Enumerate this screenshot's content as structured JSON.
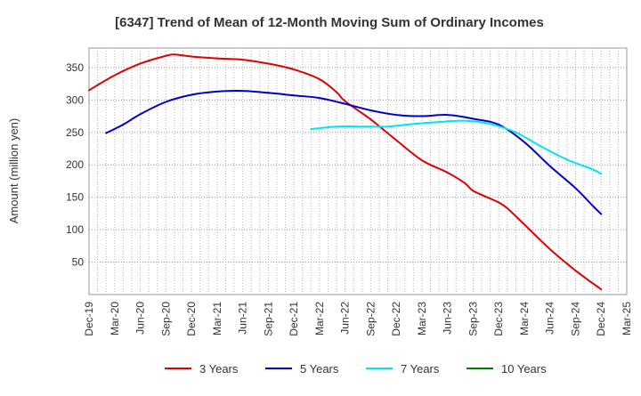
{
  "chart_data": {
    "type": "line",
    "title": "[6347]  Trend of Mean of 12-Month Moving Sum of Ordinary Incomes",
    "xlabel": "",
    "ylabel": "Amount (million yen)",
    "ylim": [
      0,
      380
    ],
    "yticks": [
      50,
      100,
      150,
      200,
      250,
      300,
      350
    ],
    "grid": true,
    "legend_position": "bottom",
    "x_index_range": [
      0,
      63
    ],
    "x_ticks": [
      {
        "i": 0,
        "label": "Dec-19"
      },
      {
        "i": 3,
        "label": "Mar-20"
      },
      {
        "i": 6,
        "label": "Jun-20"
      },
      {
        "i": 9,
        "label": "Sep-20"
      },
      {
        "i": 12,
        "label": "Dec-20"
      },
      {
        "i": 15,
        "label": "Mar-21"
      },
      {
        "i": 18,
        "label": "Jun-21"
      },
      {
        "i": 21,
        "label": "Sep-21"
      },
      {
        "i": 24,
        "label": "Dec-21"
      },
      {
        "i": 27,
        "label": "Mar-22"
      },
      {
        "i": 30,
        "label": "Jun-22"
      },
      {
        "i": 33,
        "label": "Sep-22"
      },
      {
        "i": 36,
        "label": "Dec-22"
      },
      {
        "i": 39,
        "label": "Mar-23"
      },
      {
        "i": 42,
        "label": "Jun-23"
      },
      {
        "i": 45,
        "label": "Sep-23"
      },
      {
        "i": 48,
        "label": "Dec-23"
      },
      {
        "i": 51,
        "label": "Mar-24"
      },
      {
        "i": 54,
        "label": "Jun-24"
      },
      {
        "i": 57,
        "label": "Sep-24"
      },
      {
        "i": 60,
        "label": "Dec-24"
      },
      {
        "i": 63,
        "label": "Mar-25"
      }
    ],
    "series": [
      {
        "name": "3 Years",
        "color": "#e00000",
        "points": [
          [
            0,
            315
          ],
          [
            3,
            338
          ],
          [
            6,
            356
          ],
          [
            9,
            368
          ],
          [
            10,
            370
          ],
          [
            12,
            367
          ],
          [
            15,
            364
          ],
          [
            18,
            362
          ],
          [
            21,
            356
          ],
          [
            24,
            347
          ],
          [
            27,
            332
          ],
          [
            29,
            312
          ],
          [
            30,
            298
          ],
          [
            33,
            270
          ],
          [
            36,
            238
          ],
          [
            39,
            207
          ],
          [
            42,
            188
          ],
          [
            44,
            172
          ],
          [
            45,
            160
          ],
          [
            47,
            148
          ],
          [
            48,
            142
          ],
          [
            49,
            133
          ],
          [
            51,
            108
          ],
          [
            54,
            70
          ],
          [
            57,
            37
          ],
          [
            60,
            8
          ]
        ]
      },
      {
        "name": "5 Years",
        "color": "#0000cc",
        "points": [
          [
            2,
            249
          ],
          [
            4,
            262
          ],
          [
            6,
            278
          ],
          [
            9,
            297
          ],
          [
            12,
            308
          ],
          [
            15,
            313
          ],
          [
            18,
            314
          ],
          [
            21,
            311
          ],
          [
            24,
            307
          ],
          [
            27,
            303
          ],
          [
            30,
            294
          ],
          [
            33,
            284
          ],
          [
            36,
            277
          ],
          [
            39,
            275
          ],
          [
            42,
            277
          ],
          [
            45,
            271
          ],
          [
            48,
            262
          ],
          [
            51,
            235
          ],
          [
            54,
            198
          ],
          [
            57,
            164
          ],
          [
            59,
            137
          ],
          [
            60,
            124
          ]
        ]
      },
      {
        "name": "7 Years",
        "color": "#00e5ee",
        "points": [
          [
            26,
            255
          ],
          [
            29,
            259
          ],
          [
            32,
            259
          ],
          [
            35,
            259
          ],
          [
            38,
            263
          ],
          [
            41,
            266
          ],
          [
            44,
            268
          ],
          [
            47,
            263
          ],
          [
            50,
            250
          ],
          [
            53,
            228
          ],
          [
            56,
            208
          ],
          [
            59,
            193
          ],
          [
            60,
            186
          ]
        ]
      },
      {
        "name": "10 Years",
        "color": "#008000",
        "points": []
      }
    ]
  }
}
